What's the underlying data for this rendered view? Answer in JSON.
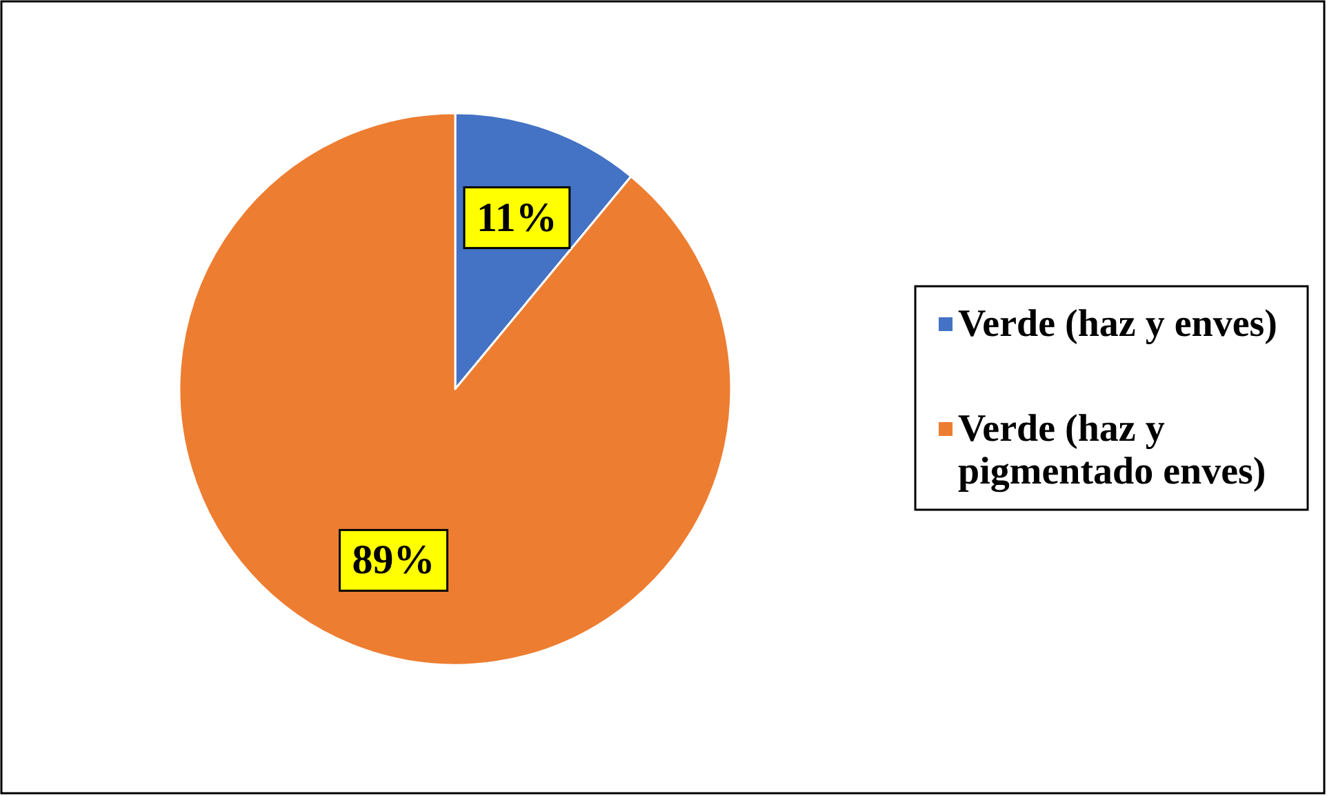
{
  "chart_data": {
    "type": "pie",
    "categories": [
      "Verde (haz y enves)",
      "Verde (haz y pigmentado enves)"
    ],
    "values": [
      11,
      89
    ],
    "colors": [
      "#4472c4",
      "#ed7d31"
    ],
    "value_labels": [
      "11%",
      "89%"
    ],
    "legend": "right"
  }
}
